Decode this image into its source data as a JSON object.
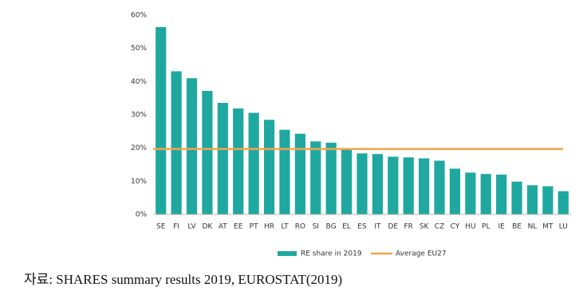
{
  "chart_data": {
    "type": "bar",
    "categories": [
      "SE",
      "FI",
      "LV",
      "DK",
      "AT",
      "EE",
      "PT",
      "HR",
      "LT",
      "RO",
      "SI",
      "BG",
      "EL",
      "ES",
      "IT",
      "DE",
      "FR",
      "SK",
      "CZ",
      "CY",
      "HU",
      "PL",
      "IE",
      "BE",
      "NL",
      "MT",
      "LU"
    ],
    "series": [
      {
        "name": "RE share in 2019",
        "color": "#1fa89f",
        "values": [
          56.4,
          43.1,
          41.0,
          37.2,
          33.6,
          31.9,
          30.6,
          28.5,
          25.5,
          24.3,
          22.0,
          21.6,
          19.7,
          18.4,
          18.2,
          17.4,
          17.2,
          16.9,
          16.2,
          13.8,
          12.6,
          12.2,
          12.0,
          9.9,
          8.8,
          8.5,
          7.0
        ]
      }
    ],
    "reference_line": {
      "name": "Average EU27",
      "color": "#f4a34a",
      "value": 19.7
    },
    "ylim": [
      0,
      60
    ],
    "yticks": [
      {
        "value": 0,
        "label": "0%"
      },
      {
        "value": 10,
        "label": "10%"
      },
      {
        "value": 20,
        "label": "20%"
      },
      {
        "value": 30,
        "label": "30%"
      },
      {
        "value": 40,
        "label": "40%"
      },
      {
        "value": 50,
        "label": "50%"
      },
      {
        "value": 60,
        "label": "60%"
      }
    ],
    "grid": false
  },
  "caption": "자료: SHARES summary results 2019, EUROSTAT(2019)"
}
